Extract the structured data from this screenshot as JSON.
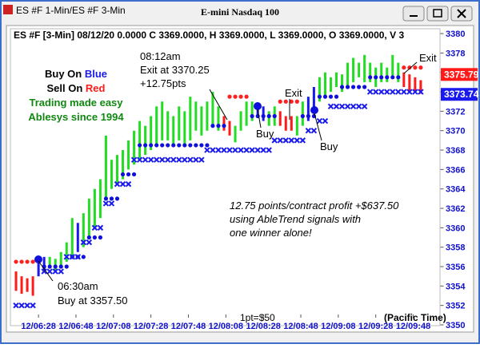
{
  "window": {
    "tab": "ES #F 1-Min/ES #F 3-Min",
    "title": "E-mini Nasdaq 100"
  },
  "chart_data": {
    "type": "range_bar",
    "header": "ES #F [3-Min] 08/12/20  0.0000 C 3369.0000, H 3369.0000, L 3369.0000, O 3369.0000, V 3",
    "x": [
      376,
      379,
      382,
      385,
      388,
      391,
      394,
      397,
      400,
      403,
      406,
      409,
      412,
      415,
      418,
      421,
      424,
      427,
      430,
      433,
      436,
      439,
      442,
      445,
      448,
      451,
      454,
      457,
      460,
      463,
      466,
      469,
      472,
      475,
      478,
      481,
      484,
      487,
      490,
      493,
      496,
      499,
      502,
      505,
      508,
      511,
      514,
      517,
      520,
      523,
      526,
      529,
      532,
      535,
      538,
      541,
      544,
      547,
      550,
      553,
      556,
      559,
      562,
      565,
      568,
      571,
      574,
      577,
      580,
      583,
      586,
      589,
      592
    ],
    "low": [
      3353.5,
      3353.2,
      3353.4,
      3353,
      3355,
      3355.5,
      3355.8,
      3355.5,
      3356,
      3356.5,
      3357,
      3357.5,
      3358,
      3359,
      3360,
      3361,
      3363,
      3364,
      3364.5,
      3365,
      3366,
      3366.5,
      3367,
      3367.5,
      3368,
      3368.5,
      3369,
      3369,
      3368.5,
      3369,
      3368.5,
      3369,
      3370,
      3369.5,
      3370,
      3370.5,
      3370,
      3370,
      3369.5,
      3368.8,
      3370,
      3370.5,
      3371,
      3371.5,
      3371,
      3370.5,
      3370.5,
      3370.5,
      3370,
      3370,
      3369.5,
      3370.5,
      3371,
      3372,
      3373,
      3373.5,
      3374,
      3374.5,
      3374,
      3374.5,
      3375,
      3375.5,
      3375,
      3375,
      3374.5,
      3375,
      3375,
      3375.5,
      3375,
      3374.5,
      3374,
      3374,
      3373.8
    ],
    "high": [
      3355.5,
      3355,
      3354.8,
      3355,
      3356.5,
      3357,
      3357,
      3356.8,
      3357.5,
      3358.5,
      3361,
      3360.5,
      3361.5,
      3363,
      3364,
      3365,
      3369.5,
      3367,
      3367.5,
      3368,
      3369,
      3370,
      3371,
      3370.5,
      3371.5,
      3372.5,
      3373,
      3372,
      3371.5,
      3372.5,
      3372,
      3373.5,
      3373,
      3372.5,
      3373,
      3374,
      3372.5,
      3371.5,
      3371,
      3370.5,
      3372,
      3373,
      3373,
      3372.8,
      3372.5,
      3372,
      3372.5,
      3372,
      3371.5,
      3371.5,
      3371.5,
      3373,
      3373.5,
      3374.5,
      3375.5,
      3376,
      3375.5,
      3376,
      3375.8,
      3377,
      3377.5,
      3377,
      3377.8,
      3377,
      3376.5,
      3377,
      3376.5,
      3377.8,
      3377,
      3376,
      3375.8,
      3375.5,
      3375.2
    ],
    "colors": [
      "#ff1a1a",
      "#ff1a1a",
      "#ff1a1a",
      "#ff1a1a",
      "#1a1aee",
      "#1a1aee",
      "#22dd22",
      "#22dd22",
      "#22dd22",
      "#22dd22",
      "#22dd22",
      "#1a1aee",
      "#22dd22",
      "#22dd22",
      "#22dd22",
      "#22dd22",
      "#22dd22",
      "#22dd22",
      "#22dd22",
      "#22dd22",
      "#22dd22",
      "#22dd22",
      "#22dd22",
      "#22dd22",
      "#22dd22",
      "#22dd22",
      "#22dd22",
      "#22dd22",
      "#22dd22",
      "#22dd22",
      "#22dd22",
      "#22dd22",
      "#22dd22",
      "#22dd22",
      "#22dd22",
      "#22dd22",
      "#22dd22",
      "#ff1a1a",
      "#ff1a1a",
      "#22dd22",
      "#22dd22",
      "#22dd22",
      "#22dd22",
      "#1a1aee",
      "#1a1aee",
      "#22dd22",
      "#22dd22",
      "#ff1a1a",
      "#ff1a1a",
      "#ff1a1a",
      "#22dd22",
      "#22dd22",
      "#1a1aee",
      "#1a1aee",
      "#22dd22",
      "#22dd22",
      "#22dd22",
      "#22dd22",
      "#22dd22",
      "#22dd22",
      "#22dd22",
      "#22dd22",
      "#22dd22",
      "#22dd22",
      "#22dd22",
      "#22dd22",
      "#22dd22",
      "#22dd22",
      "#22dd22",
      "#ff1a1a",
      "#ff1a1a",
      "#ff1a1a",
      "#ff1a1a"
    ],
    "indicators": [
      {
        "marker": "dot",
        "color": "#1010dd",
        "values": [
          null,
          null,
          null,
          null,
          null,
          3356,
          3356,
          3356,
          3356,
          3356,
          3357,
          3357,
          3357,
          3359,
          3359,
          3359,
          3363,
          3363,
          3363,
          3365.5,
          3365.5,
          3365.5,
          3368.5,
          3368.5,
          3368.5,
          3368.5,
          3368.5,
          3368.5,
          3368.5,
          3368.5,
          3368.5,
          3368.5,
          3368.5,
          3368.5,
          3368.5,
          3370.5,
          3370.5,
          3370.5,
          null,
          null,
          null,
          null,
          3371.5,
          3371.5,
          3371.5,
          3371.5,
          3371.5,
          null,
          null,
          null,
          null,
          3371.5,
          3371.5,
          3371.5,
          3373.5,
          3373.5,
          3373.5,
          3373.5,
          3374.5,
          3374.5,
          3374.5,
          3374.5,
          3374.5,
          3375.5,
          3375.5,
          3375.5,
          3375.5,
          3375.5,
          3375.5,
          null,
          null,
          null,
          null
        ]
      },
      {
        "marker": "dot",
        "color": "#ff2020",
        "values": [
          3356.5,
          3356.5,
          3356.5,
          3356.5,
          null,
          null,
          null,
          null,
          null,
          null,
          null,
          null,
          null,
          null,
          null,
          null,
          null,
          null,
          null,
          null,
          null,
          null,
          null,
          null,
          null,
          null,
          null,
          null,
          null,
          null,
          null,
          null,
          null,
          null,
          null,
          null,
          null,
          null,
          3373.5,
          3373.5,
          3373.5,
          3373.5,
          null,
          null,
          null,
          null,
          null,
          3373,
          3373,
          3373,
          3373,
          null,
          null,
          null,
          null,
          null,
          null,
          null,
          null,
          null,
          null,
          null,
          null,
          null,
          null,
          null,
          null,
          null,
          null,
          3376.5,
          3376.5,
          3376.5,
          3376.5
        ]
      },
      {
        "marker": "x",
        "color": "#1a1aee",
        "values": [
          3352,
          3352,
          3352,
          3352,
          null,
          3355.5,
          3355.5,
          3355.5,
          3355.5,
          3357,
          3357,
          3357,
          3358.5,
          3358.5,
          3360,
          3360,
          3362.5,
          3362.5,
          3364.5,
          3364.5,
          3364.5,
          3367,
          3367,
          3367,
          3367,
          3367,
          3367,
          3367,
          3367,
          3367,
          3367,
          3367,
          3367,
          3367,
          3368,
          3368,
          3368,
          3368,
          3368,
          3368,
          3368,
          3368,
          3368,
          3368,
          3368,
          3368,
          3369,
          3369,
          3369,
          3369,
          3369,
          3369,
          3370,
          3370,
          3371,
          3371,
          3372.5,
          3372.5,
          3372.5,
          3372.5,
          3372.5,
          3372.5,
          3372.5,
          3374,
          3374,
          3374,
          3374,
          3374,
          3374,
          3374,
          3374,
          3374,
          3374
        ]
      }
    ],
    "price_markers": [
      {
        "value": 3375.79,
        "color": "#ff1a1a"
      },
      {
        "value": 3373.74,
        "color": "#1a1aee"
      }
    ],
    "xlim": [
      373,
      602.5
    ],
    "xticks": [
      {
        "value": 388,
        "label": "12/06:28"
      },
      {
        "value": 408,
        "label": "12/06:48"
      },
      {
        "value": 428,
        "label": "12/07:08"
      },
      {
        "value": 448,
        "label": "12/07:28"
      },
      {
        "value": 468,
        "label": "12/07:48"
      },
      {
        "value": 488,
        "label": "12/08:08"
      },
      {
        "value": 508,
        "label": "12/08:28"
      },
      {
        "value": 528,
        "label": "12/08:48"
      },
      {
        "value": 548,
        "label": "12/09:08"
      },
      {
        "value": 568,
        "label": "12/09:28"
      },
      {
        "value": 588,
        "label": "12/09:48"
      }
    ],
    "ylim": [
      3350,
      3380.5
    ],
    "yticks": [
      3350,
      3352,
      3354,
      3356,
      3358,
      3360,
      3362,
      3364,
      3366,
      3368,
      3370,
      3372,
      3374,
      3376,
      3378,
      3380
    ],
    "notes": {
      "buy": "Buy On",
      "buy_word": "Blue",
      "sell": "Sell On",
      "sell_word": "Red",
      "line3": "Trading made easy",
      "line4": "Ablesys since 1994"
    },
    "annotations": {
      "exit_time": "08:12am",
      "exit_price": "Exit at 3370.25",
      "exit_pts": "+12.75pts",
      "exit2": "Exit",
      "exit3": "Exit",
      "buy2": "Buy",
      "buy3": "Buy",
      "entry_time": "06:30am",
      "entry_price": "Buy at 3357.50",
      "profit1": "12.75 points/contract profit +$637.50",
      "profit2": "using AbleTrend signals with",
      "profit3": "one winner alone!",
      "scale": "1pt=$50",
      "tz": "(Pacific Time)"
    }
  }
}
